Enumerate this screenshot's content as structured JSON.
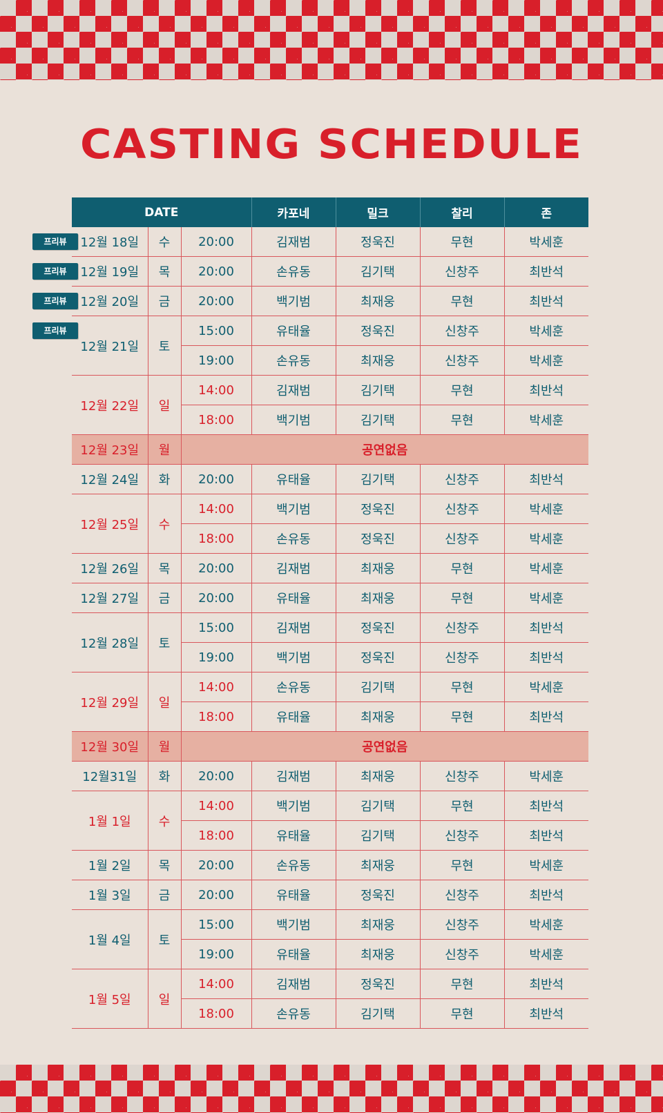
{
  "title": "CASTING SCHEDULE",
  "header": {
    "date": "DATE",
    "cast": [
      "카포네",
      "밀크",
      "찰리",
      "존"
    ]
  },
  "preview_label": "프리뷰",
  "no_show_label": "공연없음",
  "rows": {
    "r0": {
      "date": "12월 18일",
      "day": "수",
      "time": "20:00",
      "c": [
        "김재범",
        "정욱진",
        "무현",
        "박세훈"
      ]
    },
    "r1": {
      "date": "12월 19일",
      "day": "목",
      "time": "20:00",
      "c": [
        "손유동",
        "김기택",
        "신창주",
        "최반석"
      ]
    },
    "r2": {
      "date": "12월 20일",
      "day": "금",
      "time": "20:00",
      "c": [
        "백기범",
        "최재웅",
        "무현",
        "최반석"
      ]
    },
    "r3": {
      "date": "12월 21일",
      "day": "토",
      "time": "15:00",
      "c": [
        "유태율",
        "정욱진",
        "신창주",
        "박세훈"
      ]
    },
    "r4": {
      "time": "19:00",
      "c": [
        "손유동",
        "최재웅",
        "신창주",
        "박세훈"
      ]
    },
    "r5": {
      "date": "12월 22일",
      "day": "일",
      "time": "14:00",
      "c": [
        "김재범",
        "김기택",
        "무현",
        "최반석"
      ]
    },
    "r6": {
      "time": "18:00",
      "c": [
        "백기범",
        "김기택",
        "무현",
        "박세훈"
      ]
    },
    "r7": {
      "date": "12월 23일",
      "day": "월"
    },
    "r8": {
      "date": "12월 24일",
      "day": "화",
      "time": "20:00",
      "c": [
        "유태율",
        "김기택",
        "신창주",
        "최반석"
      ]
    },
    "r9": {
      "date": "12월 25일",
      "day": "수",
      "time": "14:00",
      "c": [
        "백기범",
        "정욱진",
        "신창주",
        "박세훈"
      ]
    },
    "r10": {
      "time": "18:00",
      "c": [
        "손유동",
        "정욱진",
        "신창주",
        "박세훈"
      ]
    },
    "r11": {
      "date": "12월 26일",
      "day": "목",
      "time": "20:00",
      "c": [
        "김재범",
        "최재웅",
        "무현",
        "박세훈"
      ]
    },
    "r12": {
      "date": "12월 27일",
      "day": "금",
      "time": "20:00",
      "c": [
        "유태율",
        "최재웅",
        "무현",
        "박세훈"
      ]
    },
    "r13": {
      "date": "12월 28일",
      "day": "토",
      "time": "15:00",
      "c": [
        "김재범",
        "정욱진",
        "신창주",
        "최반석"
      ]
    },
    "r14": {
      "time": "19:00",
      "c": [
        "백기범",
        "정욱진",
        "신창주",
        "최반석"
      ]
    },
    "r15": {
      "date": "12월 29일",
      "day": "일",
      "time": "14:00",
      "c": [
        "손유동",
        "김기택",
        "무현",
        "박세훈"
      ]
    },
    "r16": {
      "time": "18:00",
      "c": [
        "유태율",
        "최재웅",
        "무현",
        "최반석"
      ]
    },
    "r17": {
      "date": "12월 30일",
      "day": "월"
    },
    "r18": {
      "date": "12월31일",
      "day": "화",
      "time": "20:00",
      "c": [
        "김재범",
        "최재웅",
        "신창주",
        "박세훈"
      ]
    },
    "r19": {
      "date": "1월 1일",
      "day": "수",
      "time": "14:00",
      "c": [
        "백기범",
        "김기택",
        "무현",
        "최반석"
      ]
    },
    "r20": {
      "time": "18:00",
      "c": [
        "유태율",
        "김기택",
        "신창주",
        "최반석"
      ]
    },
    "r21": {
      "date": "1월 2일",
      "day": "목",
      "time": "20:00",
      "c": [
        "손유동",
        "최재웅",
        "무현",
        "박세훈"
      ]
    },
    "r22": {
      "date": "1월 3일",
      "day": "금",
      "time": "20:00",
      "c": [
        "유태율",
        "정욱진",
        "신창주",
        "최반석"
      ]
    },
    "r23": {
      "date": "1월 4일",
      "day": "토",
      "time": "15:00",
      "c": [
        "백기범",
        "최재웅",
        "신창주",
        "박세훈"
      ]
    },
    "r24": {
      "time": "19:00",
      "c": [
        "유태율",
        "최재웅",
        "신창주",
        "박세훈"
      ]
    },
    "r25": {
      "date": "1월 5일",
      "day": "일",
      "time": "14:00",
      "c": [
        "김재범",
        "정욱진",
        "무현",
        "최반석"
      ]
    },
    "r26": {
      "time": "18:00",
      "c": [
        "손유동",
        "김기택",
        "무현",
        "최반석"
      ]
    }
  },
  "colors": {
    "red": "#d81f2a",
    "teal": "#0f5e70",
    "paper": "#eae1d9",
    "off_row": "#e6b0a2"
  }
}
